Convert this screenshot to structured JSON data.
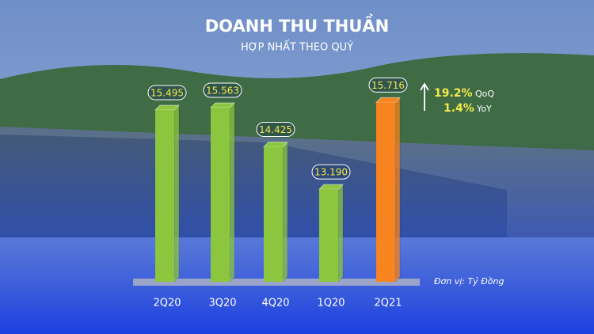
{
  "chart_data": {
    "type": "bar",
    "title": "DOANH THU THUẦN",
    "subtitle": "HỢP NHẤT THEO QUÝ",
    "categories": [
      "2Q20",
      "3Q20",
      "4Q20",
      "1Q20",
      "2Q21"
    ],
    "values": [
      15495,
      15563,
      14425,
      13190,
      15716
    ],
    "value_labels": [
      "15.495",
      "15.563",
      "14.425",
      "13.190",
      "15.716"
    ],
    "colors": [
      "#8cc63f",
      "#8cc63f",
      "#8cc63f",
      "#8cc63f",
      "#f7841f"
    ],
    "ylim": [
      10500,
      16000
    ],
    "annotations": {
      "qoq_value": "19.2%",
      "qoq_label": "QoQ",
      "yoy_value": "1.4%",
      "yoy_label": "YoY",
      "unit": "Đơn vị: Tỷ Đồng"
    }
  }
}
